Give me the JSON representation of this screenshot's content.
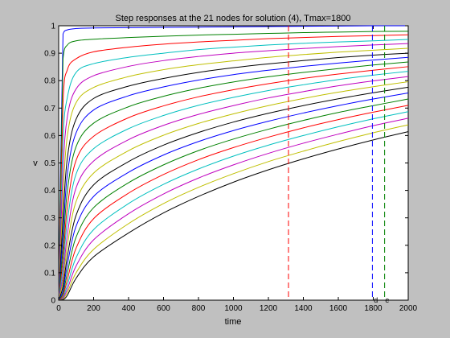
{
  "chart_data": {
    "type": "line",
    "title": "Step responses at the 21 nodes for solution (4), Tmax=1800",
    "xlabel": "time",
    "ylabel": "v",
    "xlim": [
      0,
      2000
    ],
    "ylim": [
      0,
      1
    ],
    "grid": false,
    "legend": "none",
    "x_ticks": [
      0,
      200,
      400,
      600,
      800,
      1000,
      1200,
      1400,
      1600,
      1800,
      2000
    ],
    "x_tick_labels": [
      "0",
      "200",
      "400",
      "600",
      "800",
      "1000",
      "1200",
      "1400",
      "1600",
      "1800",
      "2000"
    ],
    "y_ticks": [
      0,
      0.1,
      0.2,
      0.3,
      0.4,
      0.5,
      0.6,
      0.7,
      0.8,
      0.9,
      1
    ],
    "y_tick_labels": [
      "0",
      "0.1",
      "0.2",
      "0.3",
      "0.4",
      "0.5",
      "0.6",
      "0.7",
      "0.8",
      "0.9",
      "1"
    ],
    "x": [
      0,
      25,
      50,
      100,
      200,
      400,
      600,
      800,
      1000,
      1200,
      1400,
      1600,
      1800,
      2000
    ],
    "series": [
      {
        "color": "#0000ff",
        "values": [
          0,
          0.97,
          0.985,
          0.99,
          0.992,
          0.993,
          0.994,
          0.995,
          0.996,
          0.997,
          0.998,
          0.999,
          1.0,
          1.0
        ]
      },
      {
        "color": "#008000",
        "values": [
          0,
          0.88,
          0.93,
          0.945,
          0.951,
          0.957,
          0.962,
          0.966,
          0.969,
          0.972,
          0.975,
          0.977,
          0.979,
          0.98
        ]
      },
      {
        "color": "#ff0000",
        "values": [
          0,
          0.72,
          0.84,
          0.88,
          0.905,
          0.922,
          0.933,
          0.941,
          0.947,
          0.953,
          0.957,
          0.961,
          0.964,
          0.967
        ]
      },
      {
        "color": "#00bfbf",
        "values": [
          0,
          0.58,
          0.74,
          0.83,
          0.862,
          0.885,
          0.9,
          0.913,
          0.922,
          0.93,
          0.936,
          0.941,
          0.945,
          0.95
        ]
      },
      {
        "color": "#bf00bf",
        "values": [
          0,
          0.47,
          0.67,
          0.77,
          0.818,
          0.852,
          0.873,
          0.888,
          0.9,
          0.909,
          0.917,
          0.924,
          0.93,
          0.935
        ]
      },
      {
        "color": "#bfbf00",
        "values": [
          0,
          0.38,
          0.6,
          0.72,
          0.775,
          0.815,
          0.84,
          0.858,
          0.872,
          0.885,
          0.895,
          0.904,
          0.911,
          0.918
        ]
      },
      {
        "color": "#000000",
        "values": [
          0,
          0.3,
          0.52,
          0.66,
          0.735,
          0.78,
          0.808,
          0.83,
          0.847,
          0.861,
          0.873,
          0.884,
          0.893,
          0.9
        ]
      },
      {
        "color": "#0000ff",
        "values": [
          0,
          0.24,
          0.46,
          0.61,
          0.693,
          0.745,
          0.777,
          0.802,
          0.822,
          0.838,
          0.852,
          0.864,
          0.875,
          0.885
        ]
      },
      {
        "color": "#008000",
        "values": [
          0,
          0.19,
          0.4,
          0.56,
          0.645,
          0.705,
          0.743,
          0.772,
          0.795,
          0.814,
          0.83,
          0.844,
          0.857,
          0.868
        ]
      },
      {
        "color": "#ff0000",
        "values": [
          0,
          0.15,
          0.34,
          0.51,
          0.597,
          0.665,
          0.708,
          0.741,
          0.767,
          0.789,
          0.808,
          0.824,
          0.838,
          0.851
        ]
      },
      {
        "color": "#00bfbf",
        "values": [
          0,
          0.12,
          0.29,
          0.46,
          0.552,
          0.625,
          0.673,
          0.71,
          0.739,
          0.764,
          0.785,
          0.804,
          0.82,
          0.834
        ]
      },
      {
        "color": "#bf00bf",
        "values": [
          0,
          0.09,
          0.24,
          0.41,
          0.507,
          0.585,
          0.637,
          0.677,
          0.709,
          0.737,
          0.76,
          0.781,
          0.799,
          0.815
        ]
      },
      {
        "color": "#bfbf00",
        "values": [
          0,
          0.07,
          0.2,
          0.36,
          0.463,
          0.545,
          0.601,
          0.644,
          0.679,
          0.709,
          0.735,
          0.758,
          0.778,
          0.796
        ]
      },
      {
        "color": "#000000",
        "values": [
          0,
          0.05,
          0.16,
          0.31,
          0.42,
          0.505,
          0.565,
          0.611,
          0.649,
          0.681,
          0.709,
          0.734,
          0.756,
          0.776
        ]
      },
      {
        "color": "#0000ff",
        "values": [
          0,
          0.035,
          0.13,
          0.27,
          0.378,
          0.466,
          0.529,
          0.578,
          0.618,
          0.652,
          0.682,
          0.709,
          0.733,
          0.755
        ]
      },
      {
        "color": "#008000",
        "values": [
          0,
          0.025,
          0.1,
          0.23,
          0.337,
          0.428,
          0.493,
          0.545,
          0.587,
          0.623,
          0.655,
          0.684,
          0.709,
          0.733
        ]
      },
      {
        "color": "#ff0000",
        "values": [
          0,
          0.017,
          0.075,
          0.19,
          0.297,
          0.39,
          0.458,
          0.512,
          0.556,
          0.594,
          0.628,
          0.658,
          0.685,
          0.71
        ]
      },
      {
        "color": "#00bfbf",
        "values": [
          0,
          0.011,
          0.055,
          0.155,
          0.257,
          0.352,
          0.422,
          0.478,
          0.525,
          0.565,
          0.6,
          0.632,
          0.661,
          0.687
        ]
      },
      {
        "color": "#bf00bf",
        "values": [
          0,
          0.007,
          0.04,
          0.125,
          0.22,
          0.315,
          0.387,
          0.445,
          0.493,
          0.535,
          0.572,
          0.605,
          0.636,
          0.663
        ]
      },
      {
        "color": "#bfbf00",
        "values": [
          0,
          0.004,
          0.028,
          0.1,
          0.185,
          0.279,
          0.352,
          0.411,
          0.461,
          0.505,
          0.543,
          0.578,
          0.61,
          0.639
        ]
      },
      {
        "color": "#000000",
        "values": [
          0,
          0.002,
          0.018,
          0.08,
          0.158,
          0.245,
          0.318,
          0.378,
          0.43,
          0.475,
          0.515,
          0.551,
          0.584,
          0.614
        ]
      }
    ],
    "vlines": [
      {
        "x": 1315,
        "color": "#ff0000",
        "style": "dashed"
      },
      {
        "x": 1795,
        "color": "#0000ff",
        "style": "dashed"
      },
      {
        "x": 1865,
        "color": "#008000",
        "style": "dashed"
      }
    ],
    "annotations": [
      {
        "text": "d",
        "x": 1815,
        "y": 0
      },
      {
        "text": "e",
        "x": 1880,
        "y": 0
      }
    ]
  }
}
